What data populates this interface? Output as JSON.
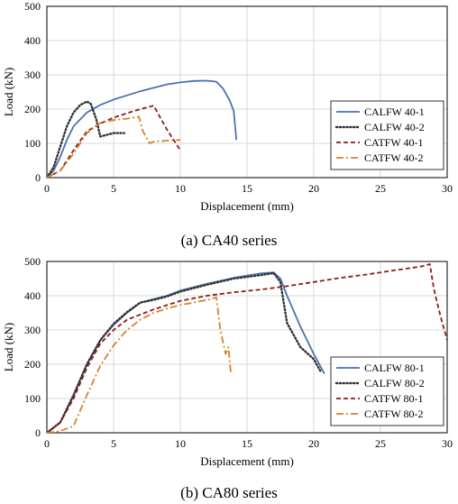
{
  "chart_data": [
    {
      "type": "line",
      "caption": "(a) CA40 series",
      "xlabel": "Displacement (mm)",
      "ylabel": "Load (kN)",
      "xlim": [
        0,
        30
      ],
      "ylim": [
        0,
        500
      ],
      "xticks": [
        "0",
        "5",
        "10",
        "15",
        "20",
        "25",
        "30"
      ],
      "yticks": [
        "0",
        "100",
        "200",
        "300",
        "400",
        "500"
      ],
      "grid": true,
      "legend_position": "right",
      "series": [
        {
          "name": "CALFW 40-1",
          "color": "#4a72b0",
          "dash": "solid",
          "x": [
            0,
            0.5,
            1,
            1.5,
            2,
            3,
            4,
            5,
            6,
            7,
            8,
            9,
            10,
            11,
            12,
            12.7,
            13.2,
            13.7,
            14,
            14.2
          ],
          "y": [
            0,
            20,
            60,
            110,
            150,
            190,
            212,
            228,
            240,
            252,
            262,
            272,
            278,
            282,
            283,
            280,
            260,
            225,
            195,
            110
          ]
        },
        {
          "name": "CALFW 40-2",
          "color": "#333333",
          "dash": "dot",
          "x": [
            0,
            0.5,
            1,
            1.5,
            2,
            2.5,
            3,
            3.3,
            3.7,
            4,
            4.5,
            5,
            5.8
          ],
          "y": [
            0,
            30,
            90,
            150,
            190,
            212,
            222,
            215,
            170,
            120,
            125,
            130,
            130
          ]
        },
        {
          "name": "CATFW 40-1",
          "color": "#8b1c1c",
          "dash": "dash",
          "x": [
            0,
            1,
            2,
            3,
            4,
            5,
            6,
            7,
            8,
            9,
            10
          ],
          "y": [
            0,
            20,
            80,
            135,
            158,
            175,
            188,
            200,
            210,
            140,
            80
          ]
        },
        {
          "name": "CATFW 40-2",
          "color": "#d9822b",
          "dash": "dashdot",
          "x": [
            0,
            1,
            2,
            3,
            4,
            5,
            6,
            6.9,
            7.2,
            7.7,
            8,
            9,
            10
          ],
          "y": [
            0,
            20,
            70,
            130,
            160,
            168,
            172,
            178,
            135,
            100,
            105,
            108,
            110
          ]
        }
      ]
    },
    {
      "type": "line",
      "caption": "(b) CA80 series",
      "xlabel": "Displacement (mm)",
      "ylabel": "Load (kN)",
      "xlim": [
        0,
        30
      ],
      "ylim": [
        0,
        500
      ],
      "xticks": [
        "0",
        "5",
        "10",
        "15",
        "20",
        "25",
        "30"
      ],
      "yticks": [
        "0",
        "100",
        "200",
        "300",
        "400",
        "500"
      ],
      "grid": true,
      "legend_position": "bottom-right",
      "series": [
        {
          "name": "CALFW 80-1",
          "color": "#4a72b0",
          "dash": "solid",
          "x": [
            0,
            1,
            2,
            3,
            4,
            5,
            6,
            7,
            8,
            9,
            10,
            12,
            14,
            16,
            17,
            17.5,
            18,
            19,
            20,
            20.8
          ],
          "y": [
            0,
            30,
            110,
            200,
            270,
            315,
            350,
            380,
            390,
            400,
            415,
            435,
            452,
            465,
            468,
            450,
            400,
            310,
            230,
            172
          ]
        },
        {
          "name": "CALFW 80-2",
          "color": "#333333",
          "dash": "dot",
          "x": [
            0,
            1,
            2,
            3,
            4,
            5,
            6,
            7,
            8,
            9,
            10,
            12,
            14,
            16,
            17,
            17.5,
            18,
            19,
            20,
            20.5
          ],
          "y": [
            0,
            30,
            110,
            200,
            270,
            318,
            352,
            380,
            388,
            398,
            412,
            432,
            450,
            460,
            466,
            440,
            320,
            250,
            215,
            180
          ]
        },
        {
          "name": "CATFW 80-1",
          "color": "#8b1c1c",
          "dash": "dash",
          "x": [
            0,
            1,
            2,
            3,
            4,
            5,
            6,
            8,
            10,
            12,
            14,
            16,
            18,
            20,
            22,
            24,
            26,
            28,
            28.7,
            29,
            29.5,
            30
          ],
          "y": [
            0,
            30,
            100,
            190,
            260,
            300,
            330,
            360,
            385,
            400,
            410,
            418,
            428,
            440,
            452,
            462,
            474,
            485,
            492,
            420,
            340,
            270
          ]
        },
        {
          "name": "CATFW 80-2",
          "color": "#d9822b",
          "dash": "dashdot",
          "x": [
            0,
            1,
            2,
            3,
            4,
            5,
            6,
            7,
            8,
            9,
            10,
            11,
            12,
            12.7,
            13,
            13.4,
            13.6,
            13.8
          ],
          "y": [
            0,
            5,
            20,
            110,
            195,
            255,
            300,
            330,
            350,
            363,
            373,
            380,
            388,
            395,
            300,
            230,
            250,
            170
          ]
        }
      ]
    }
  ]
}
